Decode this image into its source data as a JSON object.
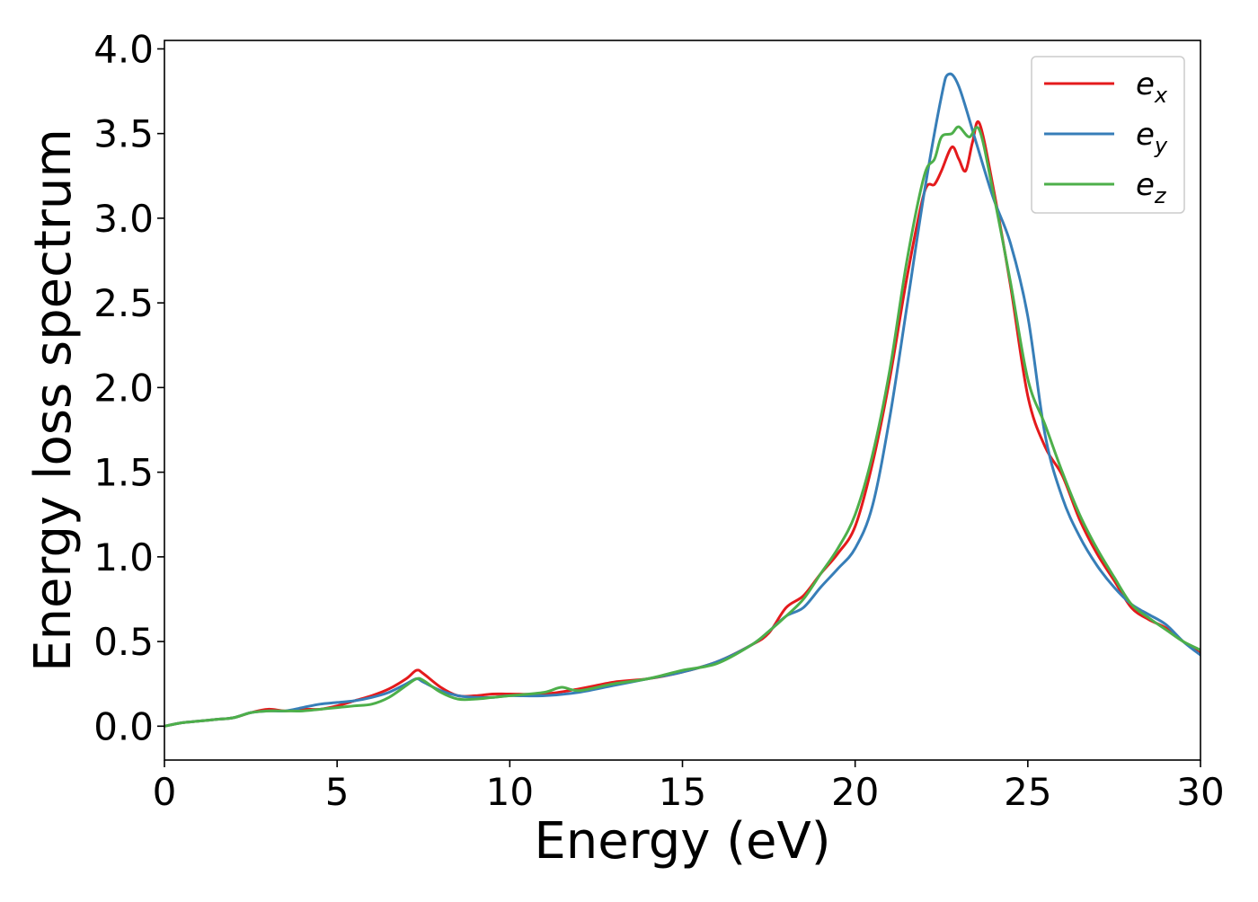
{
  "chart_data": {
    "type": "line",
    "title": "",
    "xlabel": "Energy (eV)",
    "ylabel": "Energy loss spectrum",
    "xlim": [
      0,
      30
    ],
    "ylim": [
      -0.2,
      4.05
    ],
    "xticks": [
      0,
      5,
      10,
      15,
      20,
      25,
      30
    ],
    "xtick_labels": [
      "0",
      "5",
      "10",
      "15",
      "20",
      "25",
      "30"
    ],
    "yticks": [
      0.0,
      0.5,
      1.0,
      1.5,
      2.0,
      2.5,
      3.0,
      3.5,
      4.0
    ],
    "ytick_labels": [
      "0.0",
      "0.5",
      "1.0",
      "1.5",
      "2.0",
      "2.5",
      "3.0",
      "3.5",
      "4.0"
    ],
    "grid": false,
    "legend_position": "top-right",
    "series": [
      {
        "name": "e_x",
        "legend_base": "e",
        "legend_sub": "x",
        "color": "#e41a1c",
        "x": [
          0,
          0.5,
          1,
          1.5,
          2,
          2.5,
          3,
          3.5,
          4,
          4.5,
          5,
          5.5,
          6,
          6.5,
          7,
          7.3,
          7.5,
          8,
          8.5,
          9,
          9.5,
          10,
          11,
          12,
          13,
          14,
          15,
          16,
          17,
          17.5,
          18,
          18.5,
          19,
          19.5,
          20,
          20.5,
          21,
          21.5,
          22,
          22.3,
          22.5,
          22.8,
          23,
          23.2,
          23.4,
          23.6,
          24,
          24.5,
          25,
          25.5,
          26,
          26.5,
          27,
          27.5,
          28,
          28.5,
          29,
          29.5,
          30
        ],
        "y": [
          0.0,
          0.02,
          0.03,
          0.04,
          0.05,
          0.08,
          0.1,
          0.09,
          0.1,
          0.1,
          0.12,
          0.15,
          0.18,
          0.22,
          0.28,
          0.33,
          0.31,
          0.23,
          0.18,
          0.18,
          0.19,
          0.19,
          0.19,
          0.22,
          0.26,
          0.28,
          0.32,
          0.38,
          0.48,
          0.55,
          0.7,
          0.77,
          0.9,
          1.02,
          1.18,
          1.55,
          2.05,
          2.65,
          3.15,
          3.2,
          3.28,
          3.42,
          3.35,
          3.28,
          3.45,
          3.56,
          3.18,
          2.6,
          1.95,
          1.65,
          1.48,
          1.22,
          1.02,
          0.86,
          0.7,
          0.63,
          0.58,
          0.5,
          0.43
        ]
      },
      {
        "name": "e_y",
        "legend_base": "e",
        "legend_sub": "y",
        "color": "#377eb8",
        "x": [
          0,
          0.5,
          1,
          1.5,
          2,
          2.5,
          3,
          3.5,
          4,
          4.5,
          5,
          5.5,
          6,
          6.5,
          7,
          7.3,
          7.5,
          8,
          8.5,
          9,
          9.5,
          10,
          11,
          12,
          13,
          14,
          15,
          16,
          17,
          17.5,
          18,
          18.5,
          19,
          19.5,
          20,
          20.5,
          21,
          21.5,
          22,
          22.5,
          22.7,
          23,
          23.5,
          24,
          24.5,
          25,
          25.5,
          26,
          26.5,
          27,
          27.5,
          28,
          28.5,
          29,
          29.5,
          30
        ],
        "y": [
          0.0,
          0.02,
          0.03,
          0.04,
          0.05,
          0.08,
          0.09,
          0.09,
          0.11,
          0.13,
          0.14,
          0.15,
          0.17,
          0.2,
          0.25,
          0.28,
          0.26,
          0.21,
          0.18,
          0.17,
          0.17,
          0.18,
          0.18,
          0.2,
          0.24,
          0.28,
          0.32,
          0.38,
          0.48,
          0.56,
          0.65,
          0.7,
          0.82,
          0.93,
          1.05,
          1.3,
          1.82,
          2.48,
          3.15,
          3.72,
          3.85,
          3.78,
          3.45,
          3.12,
          2.85,
          2.42,
          1.72,
          1.35,
          1.12,
          0.95,
          0.82,
          0.72,
          0.66,
          0.6,
          0.5,
          0.42
        ]
      },
      {
        "name": "e_z",
        "legend_base": "e",
        "legend_sub": "z",
        "color": "#4daf4a",
        "x": [
          0,
          0.5,
          1,
          1.5,
          2,
          2.5,
          3,
          3.5,
          4,
          4.5,
          5,
          5.5,
          6,
          6.5,
          7,
          7.3,
          7.5,
          8,
          8.5,
          9,
          9.5,
          10,
          11,
          11.5,
          12,
          13,
          14,
          15,
          16,
          17,
          17.5,
          18,
          18.5,
          19,
          19.5,
          20,
          20.5,
          21,
          21.5,
          22,
          22.3,
          22.5,
          22.8,
          23,
          23.3,
          23.6,
          24,
          24.5,
          25,
          25.5,
          26,
          26.5,
          27,
          27.5,
          28,
          28.5,
          29,
          29.5,
          30
        ],
        "y": [
          0.0,
          0.02,
          0.03,
          0.04,
          0.05,
          0.08,
          0.09,
          0.09,
          0.09,
          0.1,
          0.11,
          0.12,
          0.13,
          0.17,
          0.24,
          0.28,
          0.27,
          0.2,
          0.16,
          0.16,
          0.17,
          0.18,
          0.2,
          0.23,
          0.21,
          0.25,
          0.28,
          0.33,
          0.37,
          0.48,
          0.56,
          0.65,
          0.75,
          0.9,
          1.05,
          1.25,
          1.6,
          2.1,
          2.75,
          3.25,
          3.35,
          3.48,
          3.5,
          3.54,
          3.48,
          3.52,
          3.15,
          2.62,
          2.05,
          1.78,
          1.5,
          1.25,
          1.05,
          0.88,
          0.72,
          0.64,
          0.57,
          0.5,
          0.45
        ]
      }
    ]
  }
}
